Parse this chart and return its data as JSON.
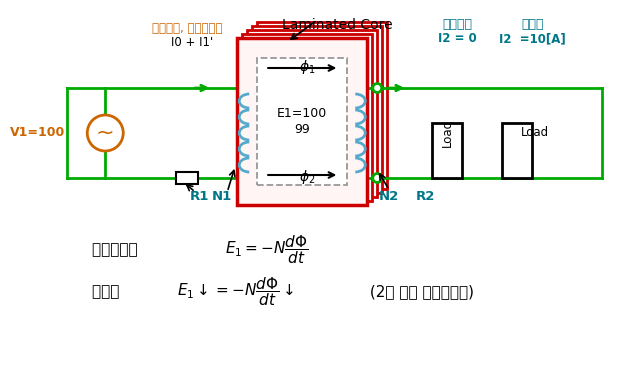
{
  "laminated_core_label": "Laminated Core",
  "core_color": "#cc0000",
  "wire_color": "#00aa00",
  "coil_color": "#55aacc",
  "bg_color": "#ffffff",
  "label_color_orange": "#cc6600",
  "label_color_cyan": "#007788",
  "label_color_black": "#000000",
  "top_label": "여자전류, 무부하전류",
  "current_label": "I0 + I1'",
  "v1_label": "V1=100",
  "n1_label": "N1",
  "r1_label": "R1",
  "n2_label": "N2",
  "r2_label": "R2",
  "e1_label": "E1=100",
  "e2_label": "99",
  "phi1_label": "φ1",
  "phi2_label": "φ2",
  "noload_label": "무부하시",
  "load_label1": "부하시",
  "i2_0_label": "I2 = 0",
  "i2_10_label": "I2  =10[A]",
  "load_text": "Load",
  "formula1_korean": "유기기전력 ",
  "formula2_korean": "부하시  ",
  "formula2_extra": " (2차 자속 반대로발생)"
}
